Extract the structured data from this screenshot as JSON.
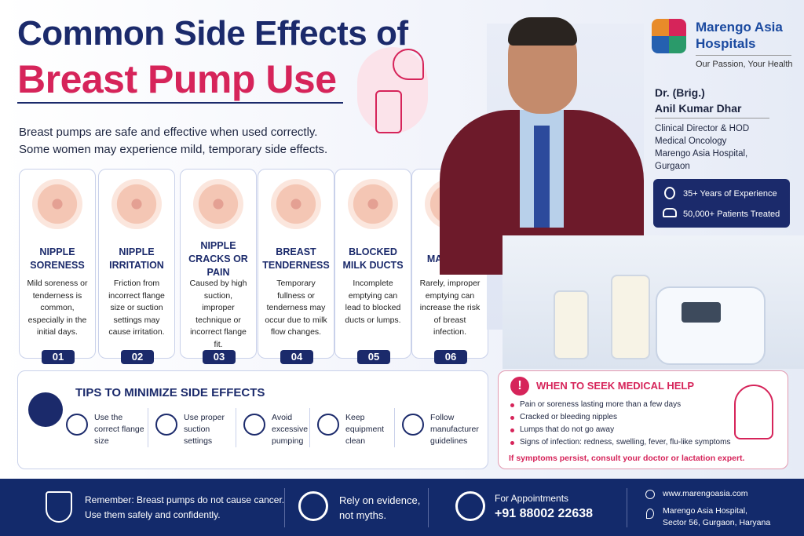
{
  "header": {
    "title_line1": "Common Side Effects of",
    "title_line2": "Breast Pump Use",
    "intro": [
      "Breast pumps are safe and effective when used correctly.",
      "Some women may experience mild, temporary side effects."
    ]
  },
  "brand": {
    "name": [
      "Marengo Asia",
      "Hospitals"
    ],
    "tagline": "Our Passion, Your Health"
  },
  "doctor": {
    "name": [
      "Dr. (Brig.)",
      "Anil Kumar Dhar"
    ],
    "details": [
      "Clinical Director & HOD",
      "Medical Oncology",
      "Marengo Asia Hospital,",
      "Gurgaon"
    ],
    "stats": [
      "35+ Years of Experience",
      "50,000+ Patients Treated"
    ]
  },
  "effects": [
    {
      "title": "NIPPLE SORENESS",
      "text": "Mild soreness or tenderness is common, especially in the initial days.",
      "number": "01"
    },
    {
      "title": "NIPPLE IRRITATION",
      "text": "Friction from incorrect flange size or suction settings may cause irritation.",
      "number": "02"
    },
    {
      "title": "NIPPLE CRACKS OR PAIN",
      "text": "Caused by high suction, improper technique or incorrect flange fit.",
      "number": "03"
    },
    {
      "title": "BREAST TENDERNESS",
      "text": "Temporary fullness or tenderness may occur due to milk flow changes.",
      "number": "04"
    },
    {
      "title": "BLOCKED MILK DUCTS",
      "text": "Incomplete emptying can lead to blocked ducts or lumps.",
      "number": "05"
    },
    {
      "title": "MASTITIS",
      "text": "Rarely, improper emptying can increase the risk of breast infection.",
      "number": "06"
    }
  ],
  "tips": {
    "title": "TIPS TO MINIMIZE SIDE EFFECTS",
    "items": [
      "Use the correct flange size",
      "Use proper suction settings",
      "Avoid excessive pumping",
      "Keep equipment clean",
      "Follow manufacturer guidelines"
    ]
  },
  "help": {
    "title": "WHEN TO SEEK MEDICAL HELP",
    "items": [
      "Pain or soreness lasting more than a few days",
      "Cracked or bleeding nipples",
      "Lumps that do not go away",
      "Signs of infection: redness, swelling, fever, flu-like symptoms"
    ],
    "note": "If symptoms persist, consult your doctor or lactation expert."
  },
  "footer": {
    "remember": [
      "Remember: Breast pumps do not cause cancer.",
      "Use them safely and confidently."
    ],
    "evidence": [
      "Rely on evidence,",
      "not myths."
    ],
    "appointments_label": "For Appointments",
    "phone": "+91 88002 22638",
    "website": "www.marengoasia.com",
    "address": [
      "Marengo Asia Hospital,",
      "Sector 56, Gurgaon, Haryana"
    ]
  }
}
